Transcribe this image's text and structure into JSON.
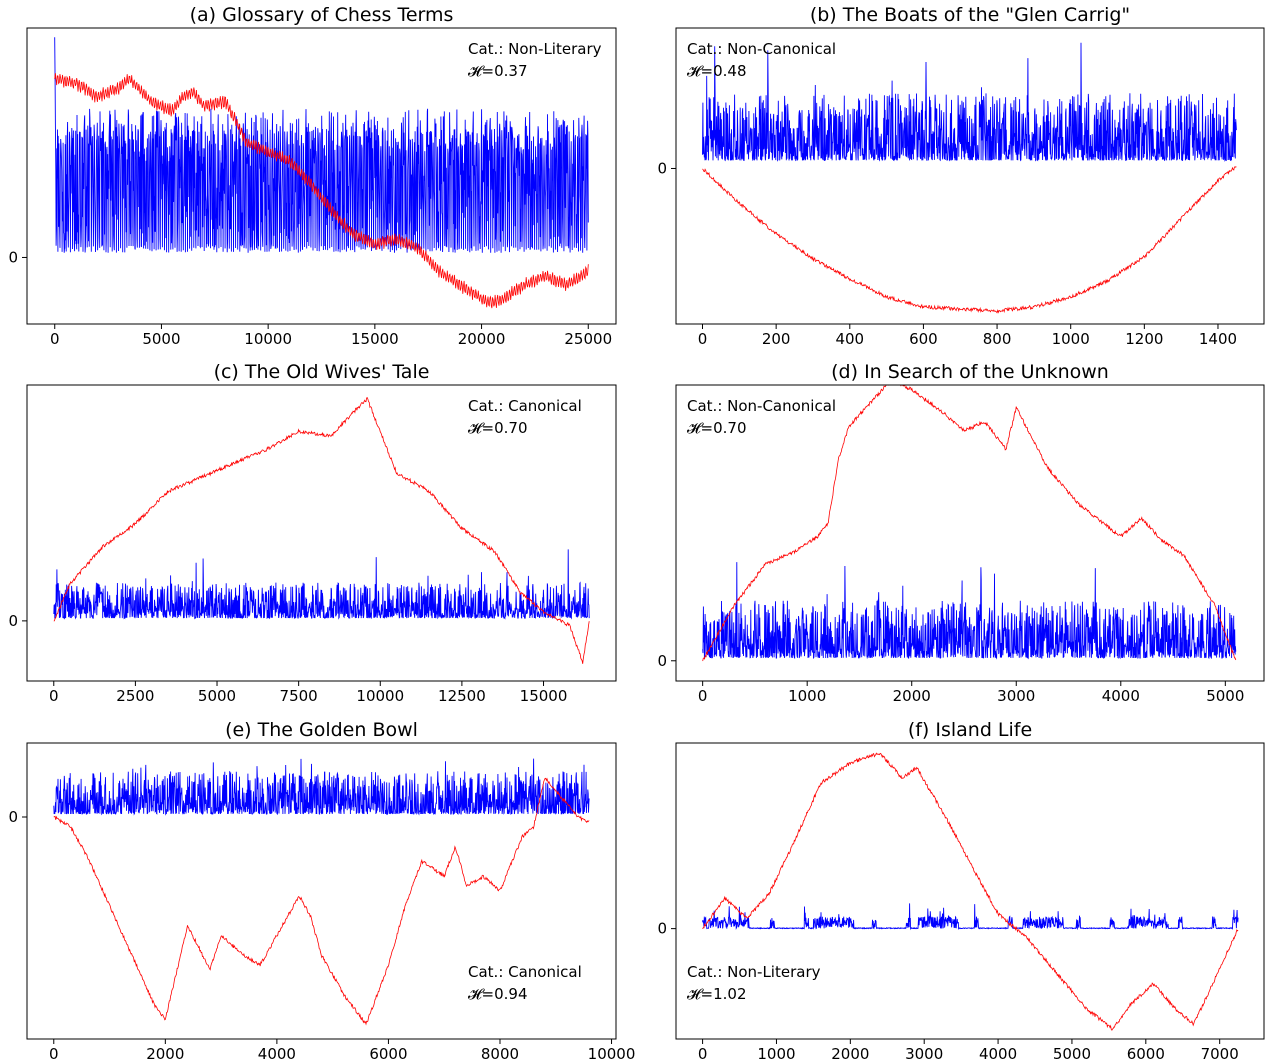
{
  "colors": {
    "signal": "#0000ff",
    "cumulative": "#ff0000",
    "axes": "#000000"
  },
  "chart_data": [
    {
      "type": "line",
      "title": "(a) Glossary of Chess Terms",
      "category_label": "Cat.: Non-Literary",
      "h_label": "𝓗=0.37",
      "annotation_position": "top-right",
      "xlim": [
        -1300,
        26300
      ],
      "ylim": [
        -1.45,
        5.0
      ],
      "xticks": [
        0,
        5000,
        10000,
        15000,
        20000,
        25000
      ],
      "xtick_labels": [
        "0",
        "5000",
        "10000",
        "15000",
        "20000",
        "25000"
      ],
      "yticks": [
        0
      ],
      "ytick_labels": [
        "0"
      ],
      "series": [
        {
          "color": "#0000ff",
          "x_range": [
            0,
            25000
          ],
          "baseline": 0.1,
          "mid": 1.7,
          "top": 2.3,
          "peak": 4.8,
          "pattern": "periodic"
        },
        {
          "color": "#ff0000",
          "x": [
            0,
            1000,
            2000,
            3000,
            3500,
            4500,
            5500,
            6000,
            6500,
            7000,
            8000,
            9000,
            10000,
            11000,
            12000,
            13000,
            14000,
            15000,
            16000,
            17000,
            18000,
            19000,
            20000,
            20500,
            21000,
            22000,
            23000,
            24000,
            25000
          ],
          "y": [
            3.9,
            3.8,
            3.5,
            3.7,
            3.9,
            3.4,
            3.2,
            3.5,
            3.6,
            3.3,
            3.4,
            2.5,
            2.3,
            2.1,
            1.6,
            1.0,
            0.5,
            0.3,
            0.4,
            0.2,
            -0.3,
            -0.6,
            -0.9,
            -1.0,
            -0.9,
            -0.6,
            -0.4,
            -0.6,
            -0.3
          ]
        }
      ]
    },
    {
      "type": "line",
      "title": "(b) The Boats of the \"Glen Carrig\"",
      "category_label": "Cat.: Non-Canonical",
      "h_label": "𝓗=0.48",
      "annotation_position": "top-left",
      "xlim": [
        -72,
        1525
      ],
      "ylim": [
        -1.55,
        1.4
      ],
      "xticks": [
        0,
        200,
        400,
        600,
        800,
        1000,
        1200,
        1400
      ],
      "xtick_labels": [
        "0",
        "200",
        "400",
        "600",
        "800",
        "1000",
        "1200",
        "1400"
      ],
      "yticks": [
        0
      ],
      "ytick_labels": [
        "0"
      ],
      "series": [
        {
          "color": "#0000ff",
          "x_range": [
            0,
            1450
          ],
          "baseline": 0.08,
          "mid": 0.28,
          "top": 0.5,
          "peak": 1.3,
          "pattern": "noise"
        },
        {
          "color": "#ff0000",
          "x": [
            0,
            100,
            200,
            300,
            400,
            500,
            600,
            700,
            800,
            900,
            1000,
            1100,
            1200,
            1300,
            1400,
            1450
          ],
          "y": [
            0,
            -0.35,
            -0.65,
            -0.9,
            -1.1,
            -1.28,
            -1.38,
            -1.4,
            -1.42,
            -1.38,
            -1.28,
            -1.12,
            -0.88,
            -0.5,
            -0.12,
            0.02
          ]
        }
      ]
    },
    {
      "type": "line",
      "title": "(c) The Old Wives' Tale",
      "category_label": "Cat.: Canonical",
      "h_label": "𝓗=0.70",
      "annotation_position": "top-right",
      "xlim": [
        -820,
        17220
      ],
      "ylim": [
        -0.65,
        2.55
      ],
      "xticks": [
        0,
        2500,
        5000,
        7500,
        10000,
        12500,
        15000
      ],
      "xtick_labels": [
        "0",
        "2500",
        "5000",
        "7500",
        "10000",
        "12500",
        "15000"
      ],
      "yticks": [
        0
      ],
      "ytick_labels": [
        "0"
      ],
      "series": [
        {
          "color": "#0000ff",
          "x_range": [
            0,
            16400
          ],
          "baseline": 0.03,
          "mid": 0.15,
          "top": 0.27,
          "peak": 0.8,
          "pattern": "noise"
        },
        {
          "color": "#ff0000",
          "x": [
            0,
            500,
            1500,
            2500,
            3500,
            4500,
            5500,
            6500,
            7500,
            8500,
            9300,
            9600,
            10500,
            11500,
            12500,
            13500,
            14300,
            15000,
            15800,
            16200,
            16400
          ],
          "y": [
            0,
            0.4,
            0.8,
            1.05,
            1.4,
            1.55,
            1.7,
            1.85,
            2.05,
            2.0,
            2.3,
            2.4,
            1.6,
            1.4,
            1.0,
            0.75,
            0.3,
            0.1,
            -0.05,
            -0.45,
            0.0
          ]
        }
      ]
    },
    {
      "type": "line",
      "title": "(d) In Search of the Unknown",
      "category_label": "Cat.: Non-Canonical",
      "h_label": "𝓗=0.70",
      "annotation_position": "top-left",
      "xlim": [
        -255,
        5370
      ],
      "ylim": [
        -0.22,
        3.0
      ],
      "xticks": [
        0,
        1000,
        2000,
        3000,
        4000,
        5000
      ],
      "xtick_labels": [
        "0",
        "1000",
        "2000",
        "3000",
        "4000",
        "5000"
      ],
      "yticks": [
        0
      ],
      "ytick_labels": [
        "0"
      ],
      "series": [
        {
          "color": "#0000ff",
          "x_range": [
            0,
            5100
          ],
          "baseline": 0.03,
          "mid": 0.2,
          "top": 0.42,
          "peak": 1.08,
          "pattern": "noise"
        },
        {
          "color": "#ff0000",
          "x": [
            0,
            300,
            600,
            900,
            1100,
            1200,
            1300,
            1400,
            1600,
            1800,
            2000,
            2300,
            2500,
            2700,
            2900,
            3000,
            3300,
            3600,
            4000,
            4200,
            4400,
            4600,
            4900,
            5100
          ],
          "y": [
            0,
            0.6,
            1.05,
            1.2,
            1.35,
            1.5,
            2.2,
            2.55,
            2.8,
            3.05,
            2.95,
            2.7,
            2.5,
            2.6,
            2.3,
            2.75,
            2.1,
            1.7,
            1.35,
            1.55,
            1.3,
            1.15,
            0.6,
            0.0
          ]
        }
      ]
    },
    {
      "type": "line",
      "title": "(e) The Golden Bowl",
      "category_label": "Cat.: Canonical",
      "h_label": "𝓗=0.94",
      "annotation_position": "bottom-right",
      "xlim": [
        -480,
        10080
      ],
      "ylim": [
        -2.25,
        0.75
      ],
      "xticks": [
        0,
        2000,
        4000,
        6000,
        8000,
        10000
      ],
      "xtick_labels": [
        "0",
        "2000",
        "4000",
        "6000",
        "8000",
        "10000"
      ],
      "yticks": [
        0
      ],
      "ytick_labels": [
        "0"
      ],
      "series": [
        {
          "color": "#0000ff",
          "x_range": [
            0,
            9600
          ],
          "baseline": 0.03,
          "mid": 0.15,
          "top": 0.3,
          "peak": 0.6,
          "pattern": "noise"
        },
        {
          "color": "#ff0000",
          "x": [
            0,
            300,
            600,
            1000,
            1400,
            1800,
            2000,
            2400,
            2800,
            3000,
            3400,
            3700,
            4000,
            4400,
            4600,
            4800,
            5200,
            5600,
            6000,
            6300,
            6600,
            7000,
            7200,
            7400,
            7700,
            8000,
            8400,
            8600,
            8800,
            9100,
            9400,
            9600
          ],
          "y": [
            0,
            -0.1,
            -0.4,
            -0.9,
            -1.4,
            -1.9,
            -2.05,
            -1.1,
            -1.55,
            -1.2,
            -1.4,
            -1.5,
            -1.2,
            -0.8,
            -1.0,
            -1.4,
            -1.8,
            -2.1,
            -1.5,
            -0.9,
            -0.45,
            -0.6,
            -0.3,
            -0.7,
            -0.6,
            -0.75,
            -0.2,
            -0.1,
            0.4,
            0.2,
            0.0,
            -0.05
          ]
        }
      ]
    },
    {
      "type": "line",
      "title": "(f) Island Life",
      "category_label": "Cat.: Non-Literary",
      "h_label": "𝓗=1.02",
      "annotation_position": "bottom-left",
      "xlim": [
        -360,
        7600
      ],
      "ylim": [
        -1.1,
        1.85
      ],
      "xticks": [
        0,
        1000,
        2000,
        3000,
        4000,
        5000,
        6000,
        7000
      ],
      "xtick_labels": [
        "0",
        "1000",
        "2000",
        "3000",
        "4000",
        "5000",
        "6000",
        "7000"
      ],
      "yticks": [
        0
      ],
      "ytick_labels": [
        "0"
      ],
      "series": [
        {
          "color": "#0000ff",
          "x_range": [
            0,
            7250
          ],
          "baseline": 0.0,
          "mid": 0.06,
          "top": 0.12,
          "peak": 0.25,
          "pattern": "sparse"
        },
        {
          "color": "#ff0000",
          "x": [
            0,
            300,
            600,
            900,
            1200,
            1600,
            2000,
            2400,
            2700,
            2900,
            3300,
            3700,
            4000,
            4400,
            4800,
            5200,
            5550,
            5800,
            6100,
            6400,
            6650,
            7000,
            7250
          ],
          "y": [
            0,
            0.3,
            0.1,
            0.35,
            0.8,
            1.45,
            1.65,
            1.75,
            1.5,
            1.6,
            1.1,
            0.55,
            0.15,
            -0.1,
            -0.45,
            -0.8,
            -1.0,
            -0.75,
            -0.55,
            -0.8,
            -0.95,
            -0.4,
            0.0
          ]
        }
      ]
    }
  ]
}
